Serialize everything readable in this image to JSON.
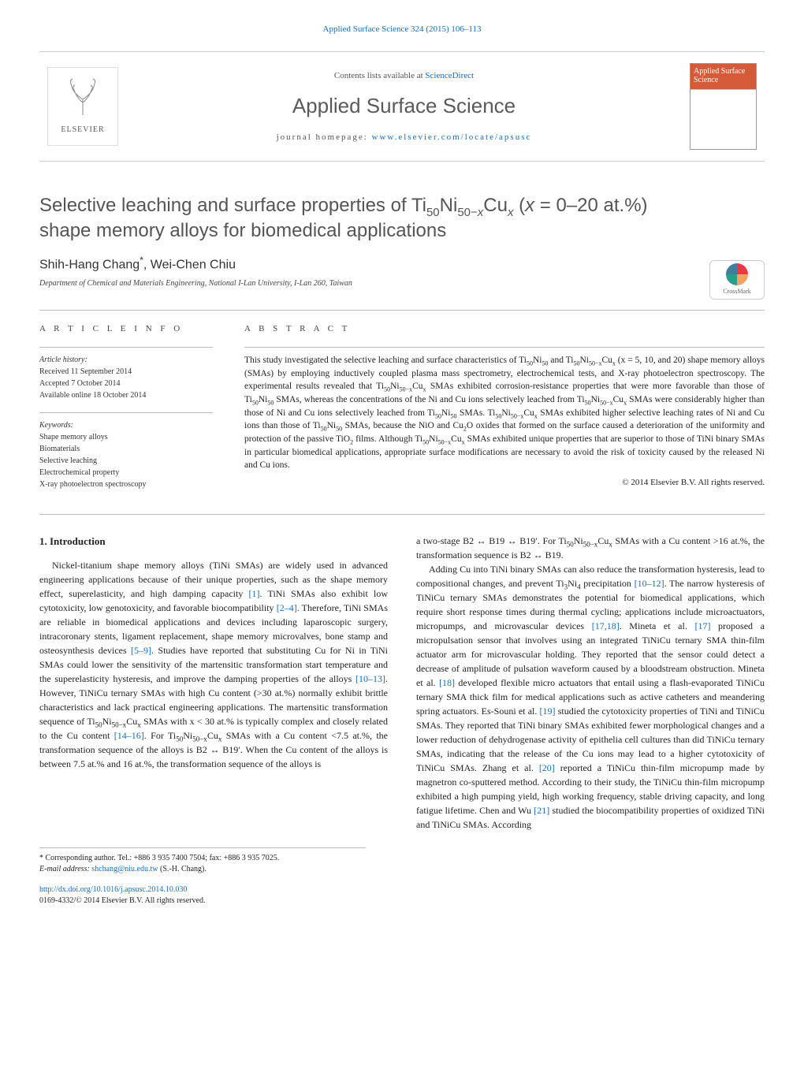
{
  "colors": {
    "link": "#1a6bb8",
    "text": "#222222",
    "heading_gray": "#555555",
    "rule": "#bbbbbb",
    "cover_accent": "#d45a3a"
  },
  "fonts": {
    "body_family": "Georgia, 'Times New Roman', serif",
    "heading_family": "Arial, Helvetica, sans-serif",
    "body_size_pt": 12,
    "title_size_pt": 24,
    "journal_name_size_pt": 26
  },
  "top_citation": "Applied Surface Science 324 (2015) 106–113",
  "header": {
    "publisher_logo_text": "ELSEVIER",
    "contents_prefix": "Contents lists available at ",
    "contents_link": "ScienceDirect",
    "journal_name": "Applied Surface Science",
    "homepage_prefix": "journal homepage: ",
    "homepage_url": "www.elsevier.com/locate/apsusc",
    "cover_label": "Applied Surface Science",
    "crossmark_label": "CrossMark"
  },
  "title_html": "Selective leaching and surface properties of Ti<sub>50</sub>Ni<sub>50−<span class=\"ital\">x</span></sub>Cu<sub><span class=\"ital\">x</span></sub> (<span class=\"ital\">x</span> = 0–20 at.%) shape memory alloys for biomedical applications",
  "authors_html": "Shih-Hang Chang<span class=\"corr\">*</span>, Wei-Chen Chiu",
  "affiliation": "Department of Chemical and Materials Engineering, National I-Lan University, I-Lan 260, Taiwan",
  "labels": {
    "article_info": "a r t i c l e   i n f o",
    "abstract": "a b s t r a c t"
  },
  "article_info": {
    "history_label": "Article history:",
    "received": "Received 11 September 2014",
    "accepted": "Accepted 7 October 2014",
    "online": "Available online 18 October 2014",
    "keywords_label": "Keywords:",
    "keywords": [
      "Shape memory alloys",
      "Biomaterials",
      "Selective leaching",
      "Electrochemical property",
      "X-ray photoelectron spectroscopy"
    ]
  },
  "abstract_html": "This study investigated the selective leaching and surface characteristics of Ti<sub>50</sub>Ni<sub>50</sub> and Ti<sub>50</sub>Ni<sub>50−x</sub>Cu<sub>x</sub> (x = 5, 10, and 20) shape memory alloys (SMAs) by employing inductively coupled plasma mass spectrometry, electrochemical tests, and X-ray photoelectron spectroscopy. The experimental results revealed that Ti<sub>50</sub>Ni<sub>50−x</sub>Cu<sub>x</sub> SMAs exhibited corrosion-resistance properties that were more favorable than those of Ti<sub>50</sub>Ni<sub>50</sub> SMAs, whereas the concentrations of the Ni and Cu ions selectively leached from Ti<sub>50</sub>Ni<sub>50−x</sub>Cu<sub>x</sub> SMAs were considerably higher than those of Ni and Cu ions selectively leached from Ti<sub>50</sub>Ni<sub>50</sub> SMAs. Ti<sub>50</sub>Ni<sub>50−x</sub>Cu<sub>x</sub> SMAs exhibited higher selective leaching rates of Ni and Cu ions than those of Ti<sub>50</sub>Ni<sub>50</sub> SMAs, because the NiO and Cu<sub>2</sub>O oxides that formed on the surface caused a deterioration of the uniformity and protection of the passive TiO<sub>2</sub> films. Although Ti<sub>50</sub>Ni<sub>50−x</sub>Cu<sub>x</sub> SMAs exhibited unique properties that are superior to those of TiNi binary SMAs in particular biomedical applications, appropriate surface modifications are necessary to avoid the risk of toxicity caused by the released Ni and Cu ions.",
  "copyright": "© 2014 Elsevier B.V. All rights reserved.",
  "body": {
    "section_heading": "1. Introduction",
    "col_left_html": "Nickel-titanium shape memory alloys (TiNi SMAs) are widely used in advanced engineering applications because of their unique properties, such as the shape memory effect, superelasticity, and high damping capacity <span class=\"cite\">[1]</span>. TiNi SMAs also exhibit low cytotoxicity, low genotoxicity, and favorable biocompatibility <span class=\"cite\">[2–4]</span>. Therefore, TiNi SMAs are reliable in biomedical applications and devices including laparoscopic surgery, intracoronary stents, ligament replacement, shape memory microvalves, bone stamp and osteosynthesis devices <span class=\"cite\">[5–9]</span>. Studies have reported that substituting Cu for Ni in TiNi SMAs could lower the sensitivity of the martensitic transformation start temperature and the superelasticity hysteresis, and improve the damping properties of the alloys <span class=\"cite\">[10–13]</span>. However, TiNiCu ternary SMAs with high Cu content (>30 at.%) normally exhibit brittle characteristics and lack practical engineering applications. The martensitic transformation sequence of Ti<sub>50</sub>Ni<sub>50−x</sub>Cu<sub>x</sub> SMAs with x < 30 at.% is typically complex and closely related to the Cu content <span class=\"cite\">[14–16]</span>. For Ti<sub>50</sub>Ni<sub>50−x</sub>Cu<sub>x</sub> SMAs with a Cu content <7.5 at.%, the transformation sequence of the alloys is B2 ↔ B19′. When the Cu content of the alloys is between 7.5 at.% and 16 at.%, the transformation sequence of the alloys is",
    "col_right_top_html": "a two-stage B2 ↔ B19 ↔ B19′. For Ti<sub>50</sub>Ni<sub>50−x</sub>Cu<sub>x</sub> SMAs with a Cu content >16 at.%, the transformation sequence is B2 ↔ B19.",
    "col_right_html": "Adding Cu into TiNi binary SMAs can also reduce the transformation hysteresis, lead to compositional changes, and prevent Ti<sub>3</sub>Ni<sub>4</sub> precipitation <span class=\"cite\">[10–12]</span>. The narrow hysteresis of TiNiCu ternary SMAs demonstrates the potential for biomedical applications, which require short response times during thermal cycling; applications include microactuators, micropumps, and microvascular devices <span class=\"cite\">[17,18]</span>. Mineta et al. <span class=\"cite\">[17]</span> proposed a micropulsation sensor that involves using an integrated TiNiCu ternary SMA thin-film actuator arm for microvascular holding. They reported that the sensor could detect a decrease of amplitude of pulsation waveform caused by a bloodstream obstruction. Mineta et al. <span class=\"cite\">[18]</span> developed flexible micro actuators that entail using a flash-evaporated TiNiCu ternary SMA thick film for medical applications such as active catheters and meandering spring actuators. Es-Souni et al. <span class=\"cite\">[19]</span> studied the cytotoxicity properties of TiNi and TiNiCu SMAs. They reported that TiNi binary SMAs exhibited fewer morphological changes and a lower reduction of dehydrogenase activity of epithelia cell cultures than did TiNiCu ternary SMAs, indicating that the release of the Cu ions may lead to a higher cytotoxicity of TiNiCu SMAs. Zhang et al. <span class=\"cite\">[20]</span> reported a TiNiCu thin-film micropump made by magnetron co-sputtered method. According to their study, the TiNiCu thin-film micropump exhibited a high pumping yield, high working frequency, stable driving capacity, and long fatigue lifetime. Chen and Wu <span class=\"cite\">[21]</span> studied the biocompatibility properties of oxidized TiNi and TiNiCu SMAs. According"
  },
  "footnote": {
    "corr_label": "* Corresponding author. Tel.: +886 3 935 7400 7504; fax: +886 3 935 7025.",
    "email_label": "E-mail address: ",
    "email": "shchang@niu.edu.tw",
    "email_suffix": " (S.-H. Chang)."
  },
  "doi": {
    "url": "http://dx.doi.org/10.1016/j.apsusc.2014.10.030",
    "issn_line": "0169-4332/© 2014 Elsevier B.V. All rights reserved."
  }
}
